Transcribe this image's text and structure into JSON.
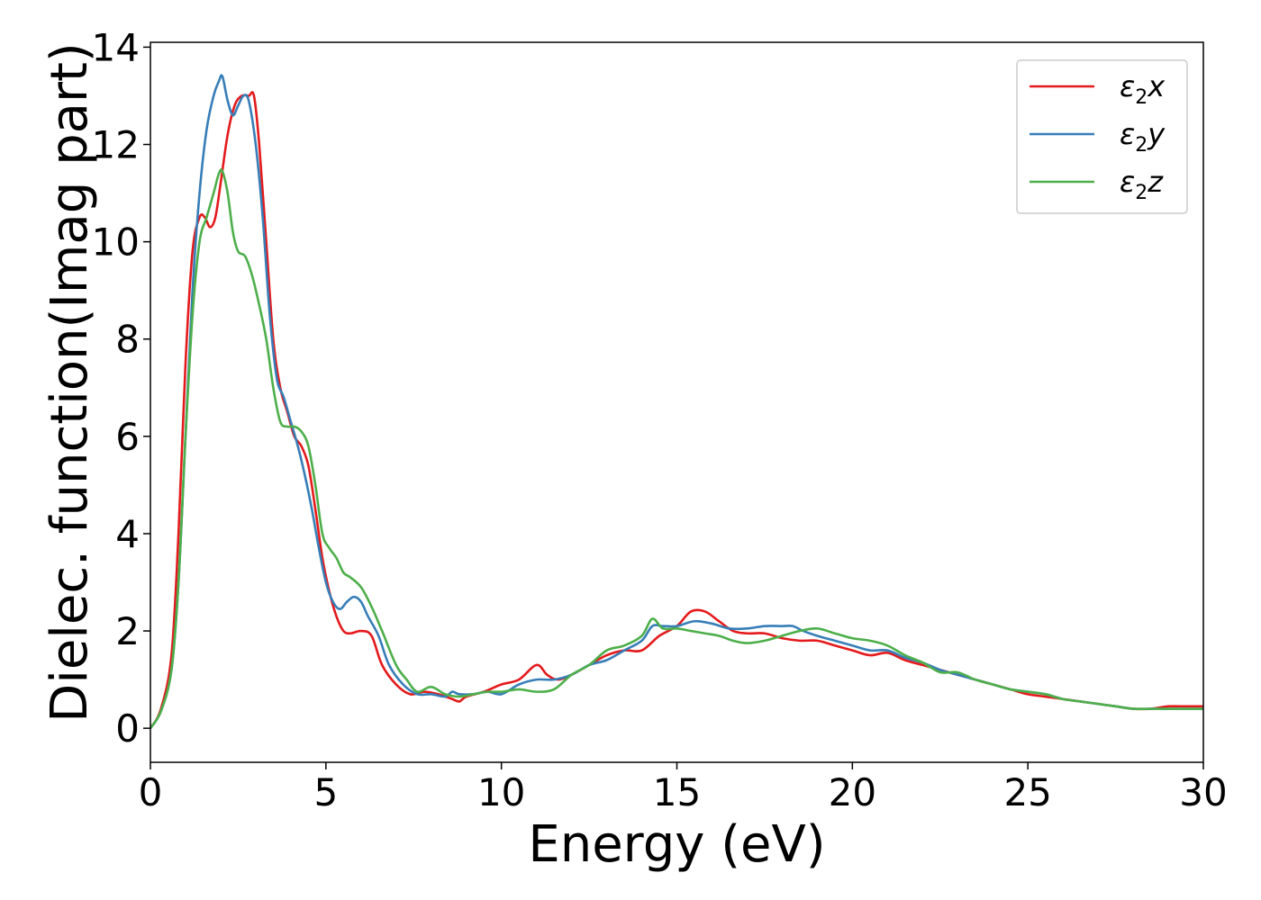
{
  "chart_data": {
    "type": "line",
    "title": "",
    "xlabel": "Energy (eV)",
    "ylabel": "Dielec. function(Imag part)",
    "xlim": [
      0,
      30
    ],
    "ylim": [
      -0.7,
      14.1
    ],
    "xticks": [
      "0",
      "5",
      "10",
      "15",
      "20",
      "25",
      "30"
    ],
    "yticks": [
      "0",
      "2",
      "4",
      "6",
      "8",
      "10",
      "12",
      "14"
    ],
    "grid": false,
    "legend_position": "top-right",
    "series": [
      {
        "name": "ε₂x",
        "legend_main": "ε",
        "legend_sub": "2",
        "legend_suffix": "x",
        "color": "#e41a1c",
        "x": [
          0,
          0.3,
          0.6,
          0.8,
          1.0,
          1.2,
          1.4,
          1.55,
          1.7,
          1.85,
          2.0,
          2.2,
          2.4,
          2.6,
          2.8,
          2.95,
          3.1,
          3.3,
          3.5,
          3.7,
          3.9,
          4.1,
          4.3,
          4.5,
          4.7,
          4.9,
          5.1,
          5.3,
          5.5,
          5.7,
          6.0,
          6.3,
          6.6,
          7.0,
          7.4,
          7.8,
          8.2,
          8.6,
          8.8,
          9.0,
          9.5,
          10.0,
          10.5,
          11.0,
          11.3,
          11.6,
          12.0,
          12.5,
          13.0,
          13.5,
          14.0,
          14.5,
          15.0,
          15.4,
          15.8,
          16.2,
          16.6,
          17.0,
          17.5,
          18.0,
          18.5,
          19.0,
          19.5,
          20.0,
          20.5,
          21.0,
          21.5,
          22.0,
          22.5,
          23.0,
          23.5,
          24.0,
          24.5,
          25.0,
          25.5,
          26.0,
          26.5,
          27.0,
          27.5,
          28.0,
          28.5,
          29.0,
          29.5,
          30.0
        ],
        "y": [
          0.0,
          0.4,
          1.5,
          4.0,
          7.5,
          9.8,
          10.5,
          10.5,
          10.3,
          10.5,
          11.2,
          12.2,
          12.8,
          13.0,
          13.0,
          13.0,
          12.0,
          10.0,
          8.0,
          7.0,
          6.5,
          6.0,
          5.8,
          5.4,
          4.5,
          3.5,
          2.8,
          2.3,
          2.0,
          1.95,
          2.0,
          1.9,
          1.3,
          0.9,
          0.7,
          0.75,
          0.7,
          0.6,
          0.55,
          0.65,
          0.75,
          0.9,
          1.0,
          1.3,
          1.1,
          1.0,
          1.1,
          1.3,
          1.5,
          1.6,
          1.6,
          1.9,
          2.1,
          2.4,
          2.4,
          2.2,
          2.0,
          1.95,
          1.95,
          1.85,
          1.8,
          1.8,
          1.7,
          1.6,
          1.5,
          1.55,
          1.4,
          1.3,
          1.2,
          1.1,
          1.0,
          0.9,
          0.8,
          0.7,
          0.65,
          0.6,
          0.55,
          0.5,
          0.45,
          0.4,
          0.4,
          0.45,
          0.45,
          0.45
        ]
      },
      {
        "name": "ε₂y",
        "legend_main": "ε",
        "legend_sub": "2",
        "legend_suffix": "y",
        "color": "#377eb8",
        "x": [
          0,
          0.3,
          0.6,
          0.8,
          1.0,
          1.2,
          1.4,
          1.6,
          1.8,
          1.95,
          2.05,
          2.2,
          2.35,
          2.5,
          2.65,
          2.8,
          3.0,
          3.2,
          3.4,
          3.6,
          3.8,
          4.0,
          4.2,
          4.4,
          4.6,
          4.8,
          5.0,
          5.2,
          5.4,
          5.6,
          5.8,
          6.0,
          6.2,
          6.5,
          6.8,
          7.2,
          7.6,
          8.0,
          8.4,
          8.6,
          8.8,
          9.2,
          9.6,
          10.0,
          10.5,
          11.0,
          11.5,
          12.0,
          12.5,
          13.0,
          13.5,
          14.0,
          14.3,
          14.6,
          15.0,
          15.5,
          16.0,
          16.5,
          17.0,
          17.5,
          18.0,
          18.3,
          18.6,
          19.0,
          19.5,
          20.0,
          20.5,
          21.0,
          21.5,
          22.0,
          22.5,
          23.0,
          23.5,
          24.0,
          24.5,
          25.0,
          25.5,
          26.0,
          26.5,
          27.0,
          27.5,
          28.0,
          28.5,
          29.0,
          29.5,
          30.0
        ],
        "y": [
          0.0,
          0.35,
          1.2,
          3.0,
          6.0,
          9.0,
          11.0,
          12.3,
          13.0,
          13.3,
          13.4,
          12.9,
          12.6,
          12.8,
          13.0,
          12.9,
          12.0,
          10.5,
          8.5,
          7.2,
          6.8,
          6.3,
          5.8,
          5.2,
          4.5,
          3.7,
          3.0,
          2.6,
          2.45,
          2.6,
          2.7,
          2.6,
          2.3,
          1.9,
          1.3,
          0.9,
          0.7,
          0.7,
          0.65,
          0.75,
          0.7,
          0.7,
          0.75,
          0.7,
          0.9,
          1.0,
          1.0,
          1.1,
          1.3,
          1.4,
          1.6,
          1.8,
          2.1,
          2.1,
          2.1,
          2.2,
          2.15,
          2.05,
          2.05,
          2.1,
          2.1,
          2.1,
          2.0,
          1.9,
          1.8,
          1.7,
          1.6,
          1.6,
          1.45,
          1.35,
          1.2,
          1.1,
          1.0,
          0.9,
          0.8,
          0.75,
          0.7,
          0.6,
          0.55,
          0.5,
          0.45,
          0.4,
          0.4,
          0.4,
          0.4,
          0.4
        ]
      },
      {
        "name": "ε₂z",
        "legend_main": "ε",
        "legend_sub": "2",
        "legend_suffix": "z",
        "color": "#4daf4a",
        "x": [
          0,
          0.3,
          0.6,
          0.8,
          1.0,
          1.2,
          1.4,
          1.6,
          1.8,
          1.95,
          2.05,
          2.2,
          2.35,
          2.5,
          2.7,
          2.9,
          3.1,
          3.3,
          3.5,
          3.7,
          3.9,
          4.1,
          4.3,
          4.5,
          4.7,
          4.9,
          5.1,
          5.3,
          5.5,
          5.7,
          6.0,
          6.3,
          6.6,
          7.0,
          7.3,
          7.6,
          8.0,
          8.4,
          8.8,
          9.2,
          9.6,
          10.0,
          10.5,
          11.0,
          11.5,
          12.0,
          12.5,
          13.0,
          13.5,
          14.0,
          14.3,
          14.6,
          15.0,
          15.4,
          15.8,
          16.2,
          16.6,
          17.0,
          17.5,
          18.0,
          18.5,
          19.0,
          19.5,
          20.0,
          20.5,
          21.0,
          21.5,
          22.0,
          22.5,
          23.0,
          23.5,
          24.0,
          24.5,
          25.0,
          25.5,
          26.0,
          26.5,
          27.0,
          27.5,
          28.0,
          28.5,
          29.0,
          29.5,
          30.0
        ],
        "y": [
          0.0,
          0.35,
          1.2,
          3.0,
          6.0,
          8.5,
          10.0,
          10.5,
          11.0,
          11.4,
          11.45,
          11.0,
          10.2,
          9.8,
          9.7,
          9.3,
          8.7,
          8.0,
          7.0,
          6.3,
          6.2,
          6.2,
          6.1,
          5.8,
          5.0,
          4.0,
          3.7,
          3.5,
          3.2,
          3.1,
          2.9,
          2.5,
          2.0,
          1.3,
          1.0,
          0.75,
          0.85,
          0.7,
          0.65,
          0.7,
          0.75,
          0.75,
          0.8,
          0.75,
          0.8,
          1.1,
          1.3,
          1.6,
          1.7,
          1.9,
          2.25,
          2.05,
          2.05,
          2.0,
          1.95,
          1.9,
          1.8,
          1.75,
          1.8,
          1.9,
          2.0,
          2.05,
          1.95,
          1.85,
          1.8,
          1.7,
          1.5,
          1.35,
          1.15,
          1.15,
          1.0,
          0.9,
          0.8,
          0.75,
          0.7,
          0.6,
          0.55,
          0.5,
          0.45,
          0.4,
          0.4,
          0.4,
          0.4,
          0.4
        ]
      }
    ]
  }
}
